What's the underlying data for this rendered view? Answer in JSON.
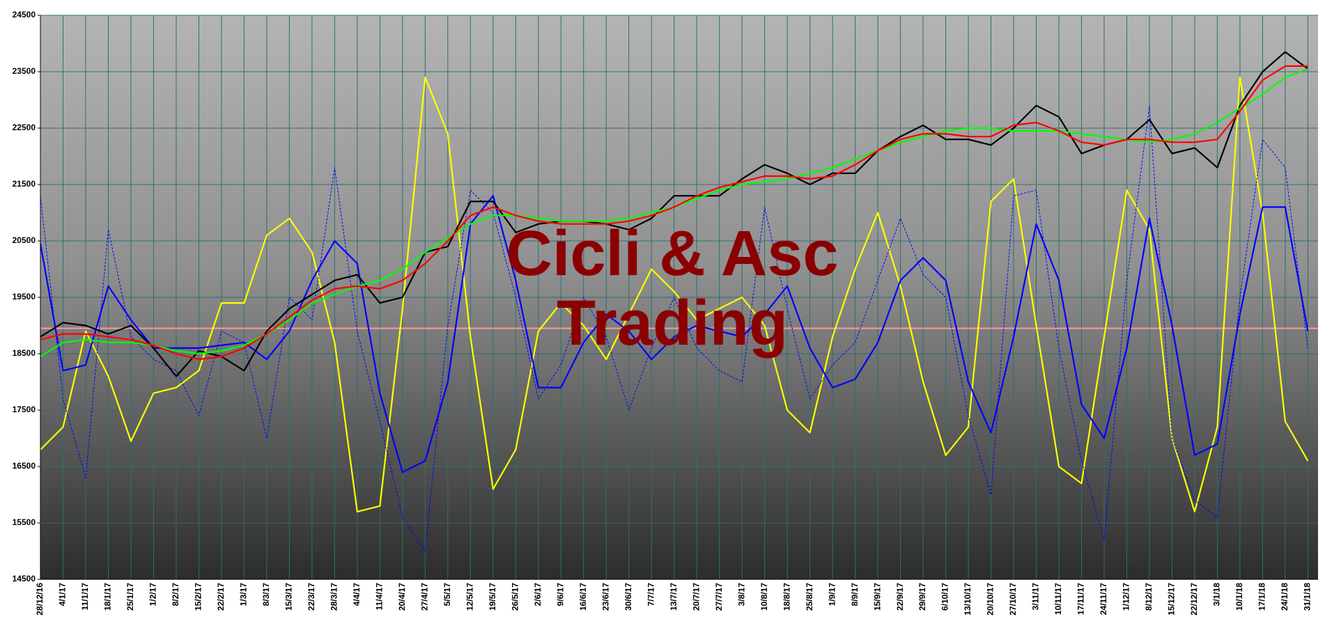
{
  "chart_data": {
    "type": "line",
    "annotations": [
      "Cicli & Asc",
      "Trading"
    ],
    "categories": [
      "28/12/16",
      "4/1/17",
      "11/1/17",
      "18/1/17",
      "25/1/17",
      "1/2/17",
      "8/2/17",
      "15/2/17",
      "22/2/17",
      "1/3/17",
      "8/3/17",
      "15/3/17",
      "22/3/17",
      "28/3/17",
      "4/4/17",
      "11/4/17",
      "20/4/17",
      "27/4/17",
      "5/5/17",
      "12/5/17",
      "19/5/17",
      "26/5/17",
      "2/6/17",
      "9/6/17",
      "16/6/17",
      "23/6/17",
      "30/6/17",
      "7/7/17",
      "13/7/17",
      "20/7/17",
      "27/7/17",
      "3/8/17",
      "10/8/17",
      "18/8/17",
      "25/8/17",
      "1/9/17",
      "8/9/17",
      "15/9/17",
      "22/9/17",
      "29/9/17",
      "6/10/17",
      "13/10/17",
      "20/10/17",
      "27/10/17",
      "3/11/17",
      "10/11/17",
      "17/11/17",
      "24/11/17",
      "1/12/17",
      "8/12/17",
      "15/12/17",
      "22/12/17",
      "3/1/18",
      "10/1/18",
      "17/1/18",
      "24/1/18",
      "31/1/18"
    ],
    "series": [
      {
        "color": "#ffff00",
        "values": [
          16800,
          17200,
          18900,
          18100,
          16950,
          17800,
          17900,
          18200,
          19400,
          19400,
          20600,
          20900,
          20300,
          18700,
          15700,
          15800,
          19300,
          23400,
          22400,
          18800,
          16100,
          16800,
          18900,
          19400,
          19000,
          18400,
          19200,
          20000,
          19600,
          19100,
          19300,
          19500,
          19000,
          17500,
          17100,
          18800,
          20000,
          21000,
          19700,
          18000,
          16700,
          17200,
          21200,
          21600,
          19000,
          16500,
          16200,
          18800,
          21400,
          20700,
          17000,
          15700,
          17200,
          23400,
          21000,
          17300,
          16600
        ]
      },
      {
        "color": "#0000ff",
        "dash": true,
        "values": [
          21300,
          17700,
          16300,
          20700,
          18800,
          18400,
          18200,
          17400,
          18900,
          18700,
          17000,
          19500,
          19100,
          21800,
          18900,
          17300,
          15600,
          15000,
          19000,
          21400,
          21000,
          19500,
          17700,
          18300,
          19500,
          18800,
          17500,
          18600,
          19500,
          18600,
          18200,
          18000,
          21100,
          19300,
          17700,
          18300,
          18700,
          19800,
          20900,
          19900,
          19500,
          17400,
          16000,
          21300,
          21400,
          18600,
          16600,
          15200,
          19800,
          22900,
          17000,
          15900,
          15600,
          19500,
          22300,
          21800,
          18600
        ]
      },
      {
        "color": "#0000ff",
        "values": [
          20450,
          18200,
          18300,
          19700,
          19100,
          18600,
          18600,
          18600,
          18650,
          18700,
          18400,
          18900,
          19800,
          20500,
          20100,
          17800,
          16400,
          16600,
          18000,
          20800,
          21300,
          19800,
          17900,
          17900,
          18700,
          19200,
          18900,
          18400,
          18800,
          19000,
          18900,
          18800,
          19200,
          19700,
          18600,
          17900,
          18050,
          18700,
          19800,
          20200,
          19800,
          18000,
          17100,
          18800,
          20800,
          19800,
          17600,
          17000,
          18600,
          20900,
          19000,
          16700,
          16900,
          19200,
          21100,
          21100,
          18900
        ]
      },
      {
        "color": "#000000",
        "values": [
          18800,
          19050,
          19000,
          18850,
          19000,
          18600,
          18100,
          18550,
          18450,
          18200,
          18900,
          19300,
          19550,
          19800,
          19900,
          19400,
          19500,
          20300,
          20400,
          21200,
          21200,
          20650,
          20800,
          20850,
          20850,
          20800,
          20700,
          20900,
          21300,
          21300,
          21300,
          21600,
          21850,
          21700,
          21500,
          21700,
          21700,
          22100,
          22350,
          22550,
          22300,
          22300,
          22200,
          22500,
          22900,
          22700,
          22050,
          22200,
          22300,
          22650,
          22050,
          22150,
          21800,
          22900,
          23500,
          23850,
          23550
        ]
      },
      {
        "color": "#00ff00",
        "values": [
          18450,
          18700,
          18750,
          18700,
          18700,
          18650,
          18550,
          18500,
          18550,
          18650,
          18850,
          19100,
          19400,
          19550,
          19700,
          19800,
          20000,
          20300,
          20550,
          20800,
          20950,
          20950,
          20900,
          20850,
          20850,
          20850,
          20900,
          21000,
          21100,
          21250,
          21400,
          21500,
          21550,
          21600,
          21700,
          21800,
          21950,
          22100,
          22250,
          22350,
          22450,
          22500,
          22500,
          22450,
          22450,
          22450,
          22400,
          22350,
          22300,
          22250,
          22300,
          22400,
          22600,
          22850,
          23100,
          23400,
          23550
        ]
      },
      {
        "color": "#ff0000",
        "values": [
          18750,
          18850,
          18850,
          18800,
          18750,
          18650,
          18500,
          18400,
          18450,
          18600,
          18850,
          19150,
          19450,
          19650,
          19700,
          19650,
          19800,
          20100,
          20500,
          20950,
          21100,
          20950,
          20850,
          20800,
          20800,
          20800,
          20850,
          20950,
          21100,
          21300,
          21450,
          21550,
          21650,
          21650,
          21600,
          21650,
          21850,
          22100,
          22300,
          22400,
          22400,
          22350,
          22350,
          22550,
          22600,
          22450,
          22250,
          22200,
          22300,
          22300,
          22250,
          22250,
          22300,
          22800,
          23350,
          23600,
          23600
        ]
      }
    ],
    "reference_line": 18950,
    "reference_color": "#ff9999",
    "ylim": [
      14500,
      24500
    ],
    "yticks": [
      14500,
      15500,
      16500,
      17500,
      18500,
      19500,
      20500,
      21500,
      22500,
      23500,
      24500
    ],
    "grid": true
  }
}
